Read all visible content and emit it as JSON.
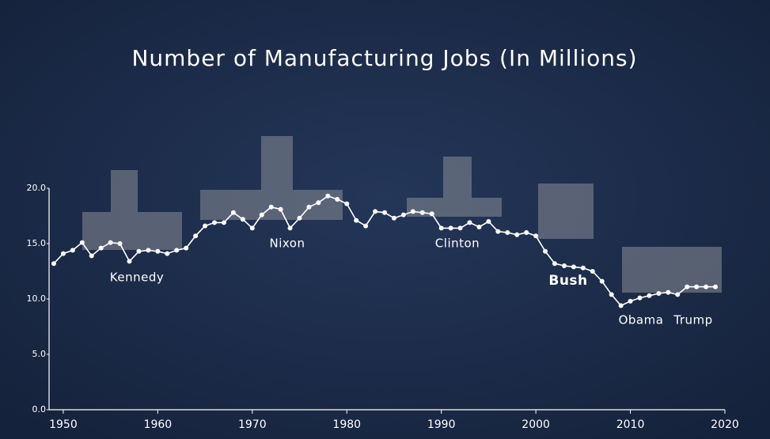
{
  "chart_data": {
    "type": "line",
    "title": "Number of Manufacturing Jobs (In Millions)",
    "x": [
      1949,
      1950,
      1951,
      1952,
      1953,
      1954,
      1955,
      1956,
      1957,
      1958,
      1959,
      1960,
      1961,
      1962,
      1963,
      1964,
      1965,
      1966,
      1967,
      1968,
      1969,
      1970,
      1971,
      1972,
      1973,
      1974,
      1975,
      1976,
      1977,
      1978,
      1979,
      1980,
      1981,
      1982,
      1983,
      1984,
      1985,
      1986,
      1987,
      1988,
      1989,
      1990,
      1991,
      1992,
      1993,
      1994,
      1995,
      1996,
      1997,
      1998,
      1999,
      2000,
      2001,
      2002,
      2003,
      2004,
      2005,
      2006,
      2007,
      2008,
      2009,
      2010,
      2011,
      2012,
      2013,
      2014,
      2015,
      2016,
      2017,
      2018,
      2019
    ],
    "series": [
      {
        "name": "Manufacturing jobs",
        "color": "#ffffff",
        "values": [
          13.2,
          14.1,
          14.4,
          15.1,
          13.9,
          14.6,
          15.1,
          15.0,
          13.4,
          14.3,
          14.4,
          14.3,
          14.1,
          14.4,
          14.6,
          15.7,
          16.6,
          16.9,
          16.9,
          17.8,
          17.2,
          16.4,
          17.6,
          18.3,
          18.1,
          16.4,
          17.3,
          18.3,
          18.7,
          19.3,
          19.0,
          18.6,
          17.1,
          16.6,
          17.9,
          17.8,
          17.3,
          17.6,
          17.9,
          17.8,
          17.7,
          16.4,
          16.4,
          16.4,
          16.9,
          16.5,
          17.0,
          16.1,
          16.0,
          15.8,
          16.0,
          15.7,
          14.3,
          13.2,
          13.0,
          12.9,
          12.8,
          12.5,
          11.6,
          10.4,
          9.4,
          9.8,
          10.1,
          10.3,
          10.5,
          10.6,
          10.4,
          11.1,
          11.1,
          11.1,
          11.1
        ]
      }
    ],
    "xlim": [
      1948.5,
      2020
    ],
    "ylim": [
      0,
      20
    ],
    "xticks": [
      1950,
      1960,
      1970,
      1980,
      1990,
      2000,
      2010,
      2020
    ],
    "yticks": [
      {
        "value": 0,
        "label": "0.0"
      },
      {
        "value": 5,
        "label": "5.0"
      },
      {
        "value": 10,
        "label": "10.0"
      },
      {
        "value": 15,
        "label": "15.0"
      },
      {
        "value": 20,
        "label": "20.0"
      }
    ],
    "annotations": [
      "Kennedy",
      "Nixon",
      "Clinton",
      "Bush",
      "Obama",
      "Trump"
    ]
  }
}
